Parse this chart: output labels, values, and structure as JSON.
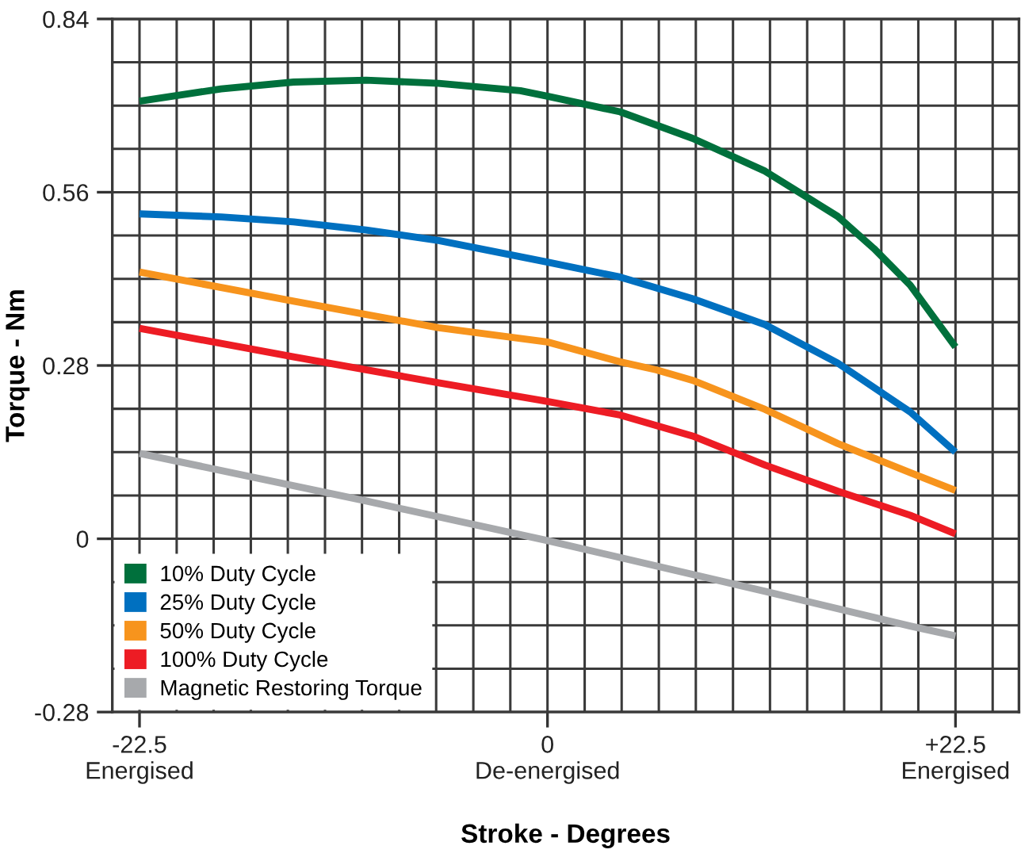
{
  "chart_data": {
    "type": "line",
    "xlabel": "Stroke - Degrees",
    "ylabel": "Torque - Nm",
    "xlim": [
      -24,
      26
    ],
    "ylim": [
      -0.28,
      0.84
    ],
    "xticks": [
      {
        "value": -22.5,
        "label": "-22.5\nEnergised"
      },
      {
        "value": -20.45,
        "label": null
      },
      {
        "value": -18.41,
        "label": null
      },
      {
        "value": -16.36,
        "label": null
      },
      {
        "value": -14.32,
        "label": null
      },
      {
        "value": -12.27,
        "label": null
      },
      {
        "value": -10.23,
        "label": null
      },
      {
        "value": -8.18,
        "label": null
      },
      {
        "value": -6.14,
        "label": null
      },
      {
        "value": -4.09,
        "label": null
      },
      {
        "value": -2.05,
        "label": null
      },
      {
        "value": 0,
        "label": "0\nDe-energised"
      },
      {
        "value": 2.05,
        "label": null
      },
      {
        "value": 4.09,
        "label": null
      },
      {
        "value": 6.14,
        "label": null
      },
      {
        "value": 8.18,
        "label": null
      },
      {
        "value": 10.23,
        "label": null
      },
      {
        "value": 12.27,
        "label": null
      },
      {
        "value": 14.32,
        "label": null
      },
      {
        "value": 16.36,
        "label": null
      },
      {
        "value": 18.41,
        "label": null
      },
      {
        "value": 20.45,
        "label": null
      },
      {
        "value": 22.5,
        "label": "+22.5\nEnergised"
      },
      {
        "value": 24.55,
        "label": null
      }
    ],
    "yticks": [
      -0.28,
      {
        "value": -0.21,
        "label": null
      },
      {
        "value": -0.14,
        "label": null
      },
      {
        "value": -0.07,
        "label": null
      },
      0,
      {
        "value": 0.07,
        "label": null
      },
      {
        "value": 0.14,
        "label": null
      },
      {
        "value": 0.21,
        "label": null
      },
      0.28,
      {
        "value": 0.35,
        "label": null
      },
      {
        "value": 0.42,
        "label": null
      },
      {
        "value": 0.49,
        "label": null
      },
      0.56,
      {
        "value": 0.63,
        "label": null
      },
      {
        "value": 0.7,
        "label": null
      },
      {
        "value": 0.77,
        "label": null
      },
      0.84
    ],
    "grid": true,
    "legend": "bottom left",
    "marker": "none",
    "line_style": "solid",
    "series": [
      {
        "name": "10% Duty Cycle",
        "color": "#00703c",
        "x": [
          -22.5,
          -18,
          -14,
          -10,
          -6,
          -1.5,
          0,
          4,
          8,
          12,
          16,
          18,
          20,
          22.5
        ],
        "values": [
          0.707,
          0.727,
          0.738,
          0.741,
          0.736,
          0.724,
          0.715,
          0.69,
          0.647,
          0.594,
          0.521,
          0.469,
          0.41,
          0.31
        ]
      },
      {
        "name": "25% Duty Cycle",
        "color": "#0070c0",
        "x": [
          -22.5,
          -18,
          -14,
          -10,
          -6,
          0,
          4,
          8,
          12,
          16,
          20,
          22.5
        ],
        "values": [
          0.525,
          0.52,
          0.512,
          0.499,
          0.482,
          0.447,
          0.423,
          0.388,
          0.346,
          0.284,
          0.205,
          0.14
        ]
      },
      {
        "name": "50% Duty Cycle",
        "color": "#f7941d",
        "x": [
          -22.5,
          -14,
          -6,
          0,
          4,
          6,
          8,
          12,
          16,
          20,
          22.5
        ],
        "values": [
          0.431,
          0.384,
          0.341,
          0.318,
          0.286,
          0.273,
          0.256,
          0.209,
          0.154,
          0.107,
          0.078
        ]
      },
      {
        "name": "100% Duty Cycle",
        "color": "#ed1c24",
        "x": [
          -22.5,
          -14,
          -6,
          0,
          4,
          6,
          8,
          12,
          16,
          20,
          22.5
        ],
        "values": [
          0.34,
          0.294,
          0.252,
          0.222,
          0.2,
          0.183,
          0.166,
          0.119,
          0.077,
          0.038,
          0.008
        ]
      },
      {
        "name": "Magnetic Restoring Torque",
        "color": "#a7a9ac",
        "x": [
          -22.5,
          -10,
          0,
          12,
          20,
          22.5
        ],
        "values": [
          0.138,
          0.061,
          -0.003,
          -0.085,
          -0.141,
          -0.157
        ]
      }
    ]
  }
}
